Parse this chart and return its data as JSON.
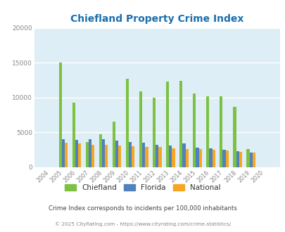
{
  "title": "Chiefland Property Crime Index",
  "years": [
    2004,
    2005,
    2006,
    2007,
    2008,
    2009,
    2010,
    2011,
    2012,
    2013,
    2014,
    2015,
    2016,
    2017,
    2018,
    2019,
    2020
  ],
  "chiefland": [
    0,
    15050,
    9300,
    3600,
    4700,
    6500,
    12700,
    10900,
    9950,
    12250,
    12400,
    10600,
    10200,
    10200,
    8650,
    2600,
    0
  ],
  "florida": [
    0,
    3950,
    3900,
    4000,
    4000,
    3800,
    3600,
    3500,
    3200,
    3100,
    3400,
    2800,
    2700,
    2500,
    2300,
    2100,
    0
  ],
  "national": [
    0,
    3450,
    3400,
    3200,
    3150,
    3050,
    2950,
    2900,
    2850,
    2700,
    2600,
    2550,
    2450,
    2400,
    2200,
    2050,
    0
  ],
  "bar_width": 0.22,
  "ylim": [
    0,
    20000
  ],
  "yticks": [
    0,
    5000,
    10000,
    15000,
    20000
  ],
  "color_chiefland": "#7dc142",
  "color_florida": "#4f81bd",
  "color_national": "#f5a623",
  "bg_color": "#deeef6",
  "grid_color": "#ffffff",
  "title_color": "#1a6faf",
  "tick_color": "#888888",
  "footnote1": "Crime Index corresponds to incidents per 100,000 inhabitants",
  "footnote2": "© 2025 CityRating.com - https://www.cityrating.com/crime-statistics/",
  "footnote_color1": "#444444",
  "footnote_color2": "#888888"
}
